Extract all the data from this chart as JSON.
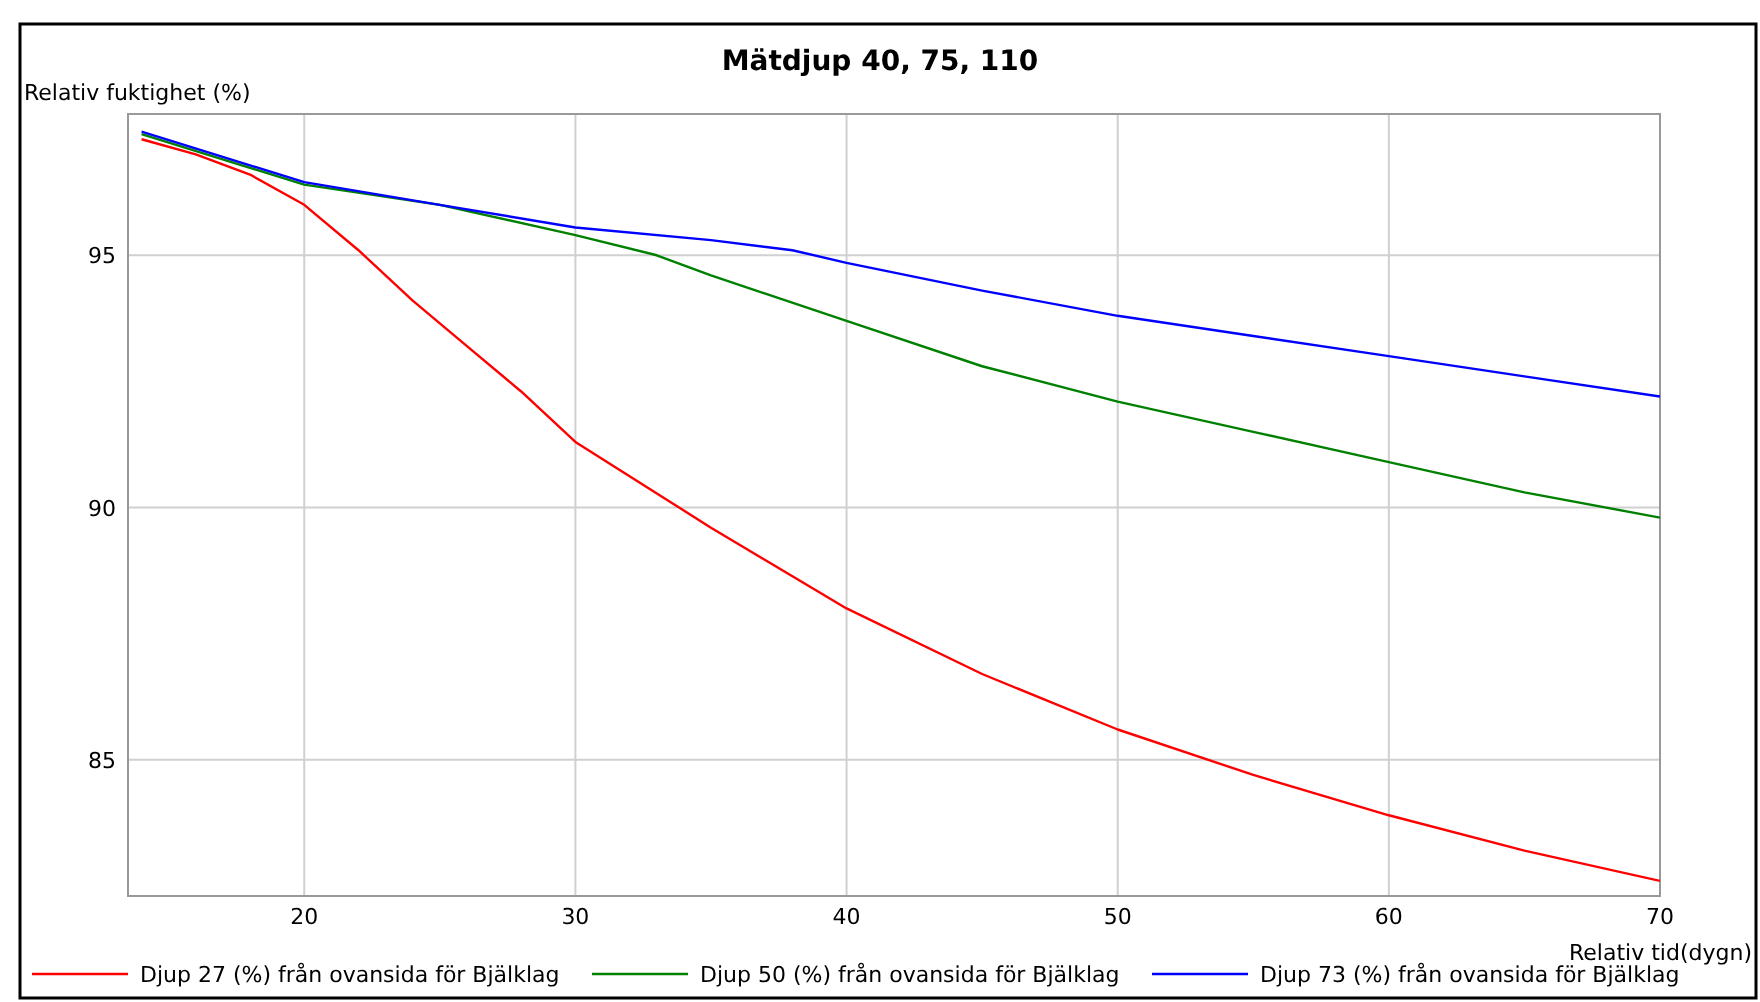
{
  "chart_data": {
    "type": "line",
    "title": "Mätdjup 40, 75, 110",
    "xlabel": "Relativ tid(dygn)",
    "ylabel": "Relativ fuktighet (%)",
    "xlim": [
      13.5,
      70
    ],
    "xticks": [
      20,
      30,
      40,
      50,
      60,
      70
    ],
    "ylim": [
      82.3,
      97.8
    ],
    "yticks": [
      85,
      90,
      95
    ],
    "grid": true,
    "legend": "bottom",
    "marker": "none",
    "line_style": "solid",
    "series": [
      {
        "name": "Djup 27 (%) från ovansida för Bjälklag",
        "color": "#ff0000",
        "x": [
          14,
          16,
          18,
          20,
          22,
          24,
          26,
          28,
          30,
          35,
          40,
          45,
          50,
          55,
          60,
          65,
          70
        ],
        "values": [
          97.3,
          97.0,
          96.6,
          96.0,
          95.1,
          94.1,
          93.2,
          92.3,
          91.3,
          89.6,
          88.0,
          86.7,
          85.6,
          84.7,
          83.9,
          83.2,
          82.6
        ]
      },
      {
        "name": "Djup 50 (%) från ovansida för Bjälklag",
        "color": "#008000",
        "x": [
          14,
          20,
          25,
          30,
          33,
          35,
          40,
          45,
          50,
          55,
          60,
          65,
          70
        ],
        "values": [
          97.4,
          96.4,
          96.0,
          95.4,
          95.0,
          94.6,
          93.7,
          92.8,
          92.1,
          91.5,
          90.9,
          90.3,
          89.8
        ]
      },
      {
        "name": "Djup 73 (%) från ovansida för Bjälklag",
        "color": "#0000ff",
        "x": [
          14,
          20,
          25,
          30,
          35,
          38,
          40,
          45,
          50,
          55,
          60,
          65,
          70
        ],
        "values": [
          97.45,
          96.45,
          96.0,
          95.55,
          95.3,
          95.1,
          94.85,
          94.3,
          93.8,
          93.4,
          93.0,
          92.6,
          92.2
        ]
      }
    ]
  }
}
